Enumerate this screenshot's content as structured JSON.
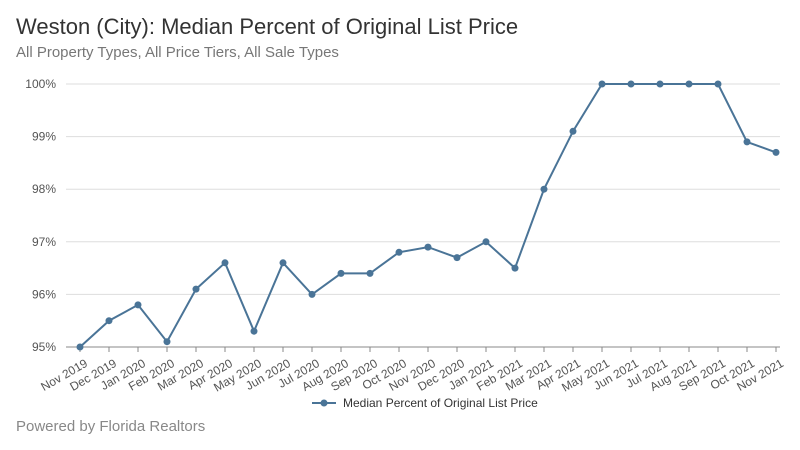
{
  "title": "Weston (City): Median Percent of Original List Price",
  "subtitle": "All Property Types, All Price Tiers, All Sale Types",
  "footer": "Powered by Florida Realtors",
  "colors": {
    "series": "#4a7497",
    "grid": "#dddddd",
    "axis": "#888888"
  },
  "chart_data": {
    "type": "line",
    "title": "Weston (City): Median Percent of Original List Price",
    "subtitle": "All Property Types, All Price Tiers, All Sale Types",
    "categories": [
      "Nov 2019",
      "Dec 2019",
      "Jan 2020",
      "Feb 2020",
      "Mar 2020",
      "Apr 2020",
      "May 2020",
      "Jun 2020",
      "Jul 2020",
      "Aug 2020",
      "Sep 2020",
      "Oct 2020",
      "Nov 2020",
      "Dec 2020",
      "Jan 2021",
      "Feb 2021",
      "Mar 2021",
      "Apr 2021",
      "May 2021",
      "Jun 2021",
      "Jul 2021",
      "Aug 2021",
      "Sep 2021",
      "Oct 2021",
      "Nov 2021"
    ],
    "series": [
      {
        "name": "Median Percent of Original List Price",
        "values": [
          95.0,
          95.5,
          95.8,
          95.1,
          96.1,
          96.6,
          95.3,
          96.6,
          96.0,
          96.4,
          96.4,
          96.8,
          96.9,
          96.7,
          97.0,
          96.5,
          98.0,
          99.1,
          100.0,
          100.0,
          100.0,
          100.0,
          100.0,
          98.9,
          98.7
        ]
      }
    ],
    "yticks": [
      "95%",
      "96%",
      "97%",
      "98%",
      "99%",
      "100%"
    ],
    "ylim": [
      95,
      100
    ],
    "grid": true,
    "legend": "bottom-center"
  }
}
